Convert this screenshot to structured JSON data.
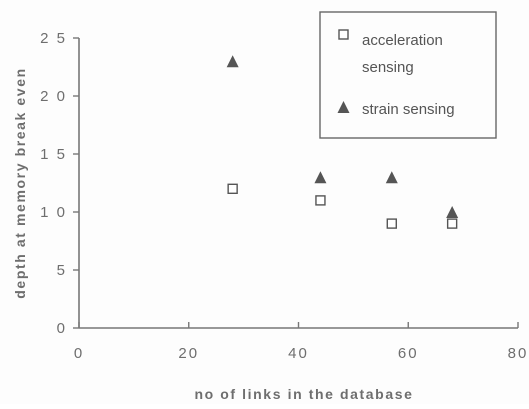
{
  "chart_data": {
    "type": "scatter",
    "title": "",
    "xlabel": "no of links in the database",
    "ylabel": "depth at memory break even",
    "xlim": [
      0,
      80
    ],
    "ylim": [
      0,
      25
    ],
    "x_ticks": [
      0,
      20,
      40,
      60,
      80
    ],
    "y_ticks": [
      0,
      5,
      10,
      15,
      20,
      25
    ],
    "x_tick_labels": [
      "0",
      "20",
      "40",
      "60",
      "80"
    ],
    "y_tick_labels": [
      "0",
      "5",
      "1 0",
      "1 5",
      "2 0",
      "2 5"
    ],
    "grid": false,
    "legend_position": "top-right",
    "series": [
      {
        "name": "acceleration sensing",
        "legend_lines": [
          "acceleration",
          "sensing"
        ],
        "marker": "open-square",
        "color": "#555555",
        "points": [
          {
            "x": 28,
            "y": 12
          },
          {
            "x": 44,
            "y": 11
          },
          {
            "x": 57,
            "y": 9
          },
          {
            "x": 68,
            "y": 9
          }
        ]
      },
      {
        "name": "strain sensing",
        "legend_lines": [
          "strain sensing"
        ],
        "marker": "filled-triangle",
        "color": "#555555",
        "points": [
          {
            "x": 28,
            "y": 23
          },
          {
            "x": 44,
            "y": 13
          },
          {
            "x": 57,
            "y": 13
          },
          {
            "x": 68,
            "y": 10
          }
        ]
      }
    ]
  }
}
